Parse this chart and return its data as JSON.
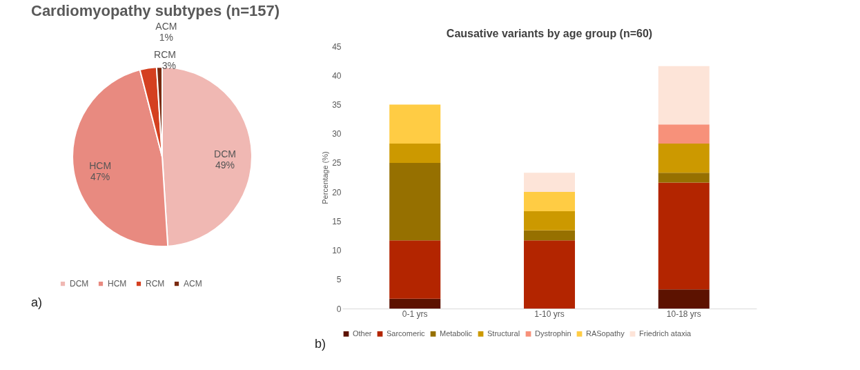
{
  "chart_data": [
    {
      "type": "pie",
      "title": "Cardiomyopathy subtypes (n=157)",
      "categories": [
        "DCM",
        "HCM",
        "RCM",
        "ACM"
      ],
      "values": [
        49,
        47,
        3,
        1
      ],
      "colors": [
        "#f0b8b3",
        "#e88a80",
        "#d44020",
        "#7a2a10"
      ],
      "value_labels": [
        "49%",
        "47%",
        "3%",
        "1%"
      ],
      "legend": "bottom",
      "annotations": [
        "a)"
      ]
    },
    {
      "type": "bar",
      "title": "Causative variants by age group (n=60)",
      "ylabel": "Percentage (%)",
      "categories": [
        "0-1 yrs",
        "1-10 yrs",
        "10-18 yrs"
      ],
      "stacked": true,
      "ylim": [
        0,
        45
      ],
      "yticks": [
        0,
        5,
        10,
        15,
        20,
        25,
        30,
        35,
        40,
        45
      ],
      "grid": false,
      "legend": "bottom",
      "annotations": [
        "b)"
      ],
      "series": [
        {
          "name": "Other",
          "color": "#5c1200",
          "values": [
            1.7,
            null,
            3.3
          ]
        },
        {
          "name": "Sarcomeric",
          "color": "#b32500",
          "values": [
            10,
            11.7,
            18.3
          ]
        },
        {
          "name": "Metabolic",
          "color": "#967000",
          "values": [
            13.3,
            1.7,
            1.7
          ]
        },
        {
          "name": "Structural",
          "color": "#cc9900",
          "values": [
            3.3,
            3.3,
            5
          ]
        },
        {
          "name": "Dystrophin",
          "color": "#f7917a",
          "values": [
            null,
            null,
            3.3
          ]
        },
        {
          "name": "RASopathy",
          "color": "#ffcc44",
          "values": [
            6.7,
            3.3,
            null
          ]
        },
        {
          "name": "Friedrich ataxia",
          "color": "#fde4d8",
          "values": [
            null,
            3.3,
            10
          ]
        }
      ]
    }
  ]
}
